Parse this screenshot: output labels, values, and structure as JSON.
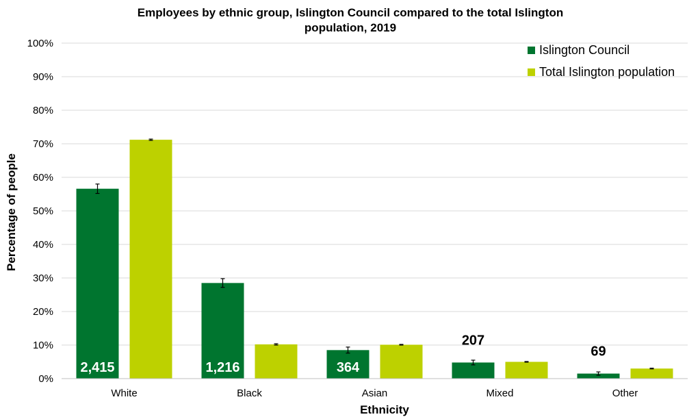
{
  "colors": {
    "council": "#00752F",
    "population": "#BDD100",
    "grid": "#D9D9D9",
    "axis": "#BFBFBF",
    "error_bar": "#000000"
  },
  "chart_data": {
    "type": "bar",
    "title_lines": [
      "Employees by ethnic group, Islington Council compared to the total Islington",
      "population, 2019"
    ],
    "xlabel": "Ethnicity",
    "ylabel": "Percentage of people",
    "ylim": [
      0,
      100
    ],
    "yticks": [
      "0%",
      "10%",
      "20%",
      "30%",
      "40%",
      "50%",
      "60%",
      "70%",
      "80%",
      "90%",
      "100%"
    ],
    "categories": [
      "White",
      "Black",
      "Asian",
      "Mixed",
      "Other"
    ],
    "legend_position": "top-right",
    "grid": true,
    "series": [
      {
        "name": "Islington Council",
        "values": [
          56.6,
          28.5,
          8.5,
          4.8,
          1.5
        ],
        "error": [
          1.4,
          1.3,
          0.9,
          0.7,
          0.5
        ],
        "count_labels": [
          "2,415",
          "1,216",
          "364",
          "207",
          "69"
        ]
      },
      {
        "name": "Total Islington population",
        "values": [
          71.2,
          10.2,
          10.1,
          5.0,
          3.0
        ],
        "error": [
          0.2,
          0.2,
          0.1,
          0.1,
          0.1
        ]
      }
    ]
  }
}
